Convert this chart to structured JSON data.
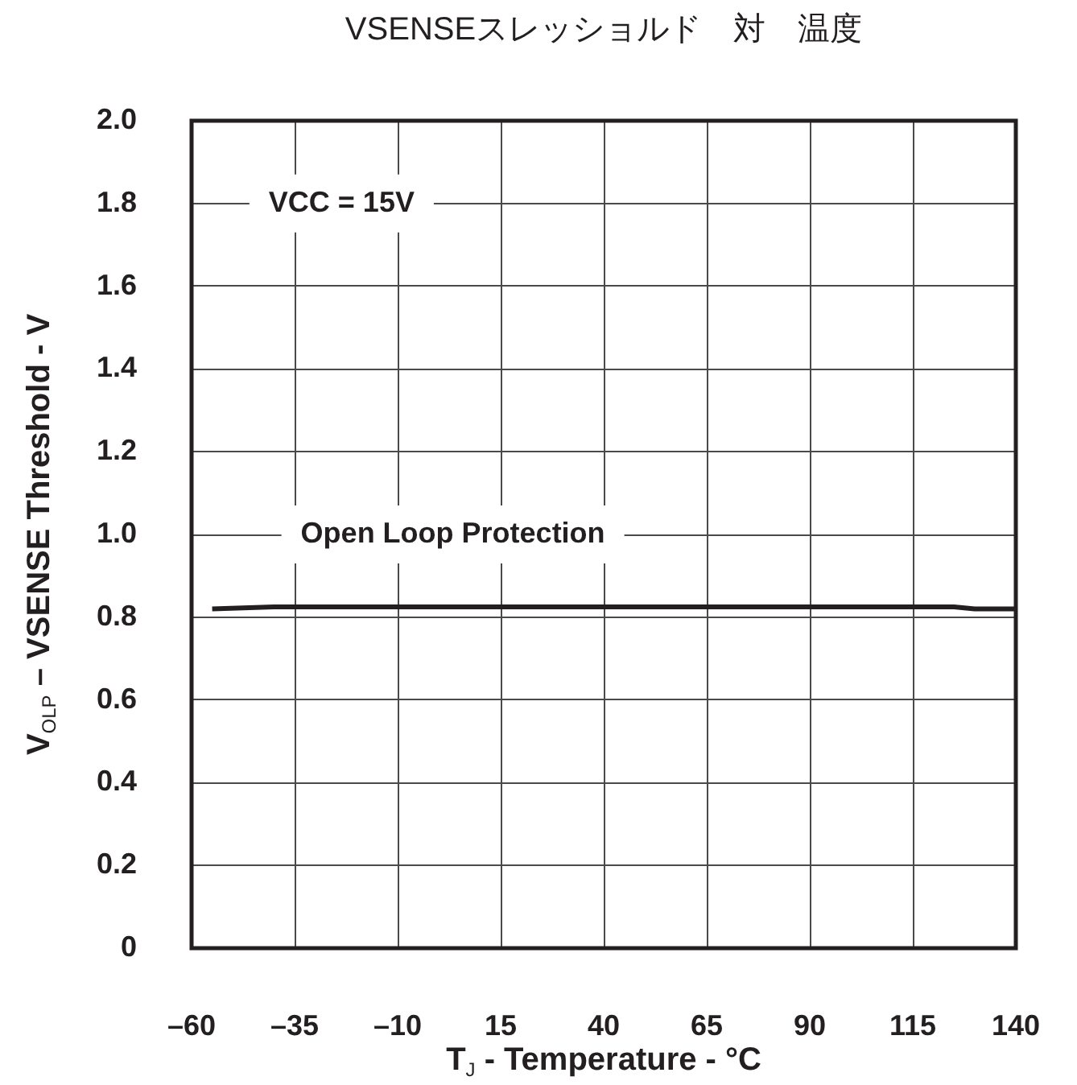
{
  "chart_data": {
    "type": "line",
    "title": "VSENSEスレッショルド　対　温度",
    "xlabel": "T$_{J}$ - Temperature - °C",
    "ylabel": "V$_{OLP}$ – VSENSE Threshold - V",
    "annotations": [
      "VCC = 15V"
    ],
    "x": [
      -55,
      -40,
      125,
      130,
      140
    ],
    "series": [
      {
        "name": "Open Loop Protection",
        "color": "#231f20",
        "values": [
          0.82,
          0.825,
          0.825,
          0.82,
          0.82
        ]
      }
    ],
    "xlim": [
      -60,
      140
    ],
    "xticks": [
      {
        "value": -60,
        "label": "–60"
      },
      {
        "value": -35,
        "label": "–35"
      },
      {
        "value": -10,
        "label": "–10"
      },
      15,
      40,
      65,
      90,
      115,
      140
    ],
    "ylim": [
      0,
      2
    ],
    "yticks": [
      0,
      0.2,
      0.4,
      0.6,
      0.8,
      {
        "value": 1,
        "label": "1.0"
      },
      1.2,
      1.4,
      1.6,
      1.8,
      {
        "value": 2,
        "label": "2.0"
      }
    ],
    "grid": true,
    "legend": false,
    "marker": "none",
    "line_style": "solid"
  }
}
